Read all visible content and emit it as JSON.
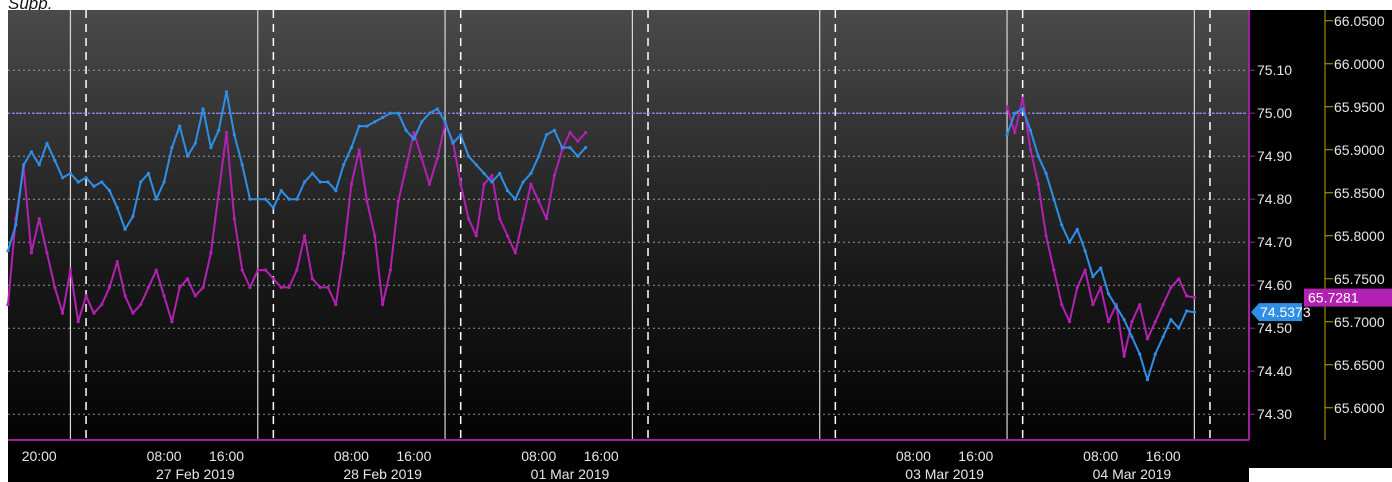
{
  "header_text": "Supp.",
  "chart_data": {
    "type": "line",
    "background": "#000000",
    "grid": "dotted",
    "x_tick_labels": [
      {
        "hour": 20,
        "label": "20:00"
      },
      {
        "hour": 36,
        "label": "08:00"
      },
      {
        "hour": 44,
        "label": "16:00"
      },
      {
        "hour": 60,
        "label": "08:00"
      },
      {
        "hour": 68,
        "label": "16:00"
      },
      {
        "hour": 84,
        "label": "08:00"
      },
      {
        "hour": 92,
        "label": "16:00"
      },
      {
        "hour": 132,
        "label": "08:00"
      },
      {
        "hour": 140,
        "label": "16:00"
      },
      {
        "hour": 156,
        "label": "08:00"
      },
      {
        "hour": 164,
        "label": "16:00"
      }
    ],
    "x_date_labels": [
      {
        "hour": 40,
        "label": "27 Feb 2019"
      },
      {
        "hour": 64,
        "label": "28 Feb 2019"
      },
      {
        "hour": 88,
        "label": "01 Mar 2019"
      },
      {
        "hour": 136,
        "label": "03 Mar 2019"
      },
      {
        "hour": 160,
        "label": "04 Mar 2019"
      }
    ],
    "x_range_hours": [
      16,
      175
    ],
    "day_boundaries_hours": [
      24,
      48,
      72,
      96,
      120,
      144,
      168
    ],
    "session_marks_hours": [
      26,
      50,
      74,
      98,
      122,
      146,
      170
    ],
    "y_left": {
      "ylim": [
        74.24,
        75.24
      ],
      "ticks": [
        "74.30",
        "74.40",
        "74.50",
        "74.60",
        "74.70",
        "74.80",
        "74.90",
        "75.00",
        "75.10"
      ]
    },
    "y_right": {
      "ylim": [
        65.5625,
        66.0625
      ],
      "ticks": [
        "65.6000",
        "65.6500",
        "65.7000",
        "65.7500",
        "65.8000",
        "65.8500",
        "65.9000",
        "65.9500",
        "66.0000",
        "66.0500"
      ]
    },
    "reference_line": {
      "axis": "left",
      "value": 75.0,
      "color": "#8080ff"
    },
    "series": [
      {
        "axis": "left",
        "color": "#2f8fe6",
        "last_value": "74.5373",
        "points": [
          [
            16,
            74.68
          ],
          [
            17,
            74.74
          ],
          [
            18,
            74.88
          ],
          [
            19,
            74.91
          ],
          [
            20,
            74.88
          ],
          [
            21,
            74.93
          ],
          [
            22,
            74.89
          ],
          [
            23,
            74.85
          ],
          [
            24,
            74.86
          ],
          [
            25,
            74.84
          ],
          [
            26,
            74.85
          ],
          [
            27,
            74.83
          ],
          [
            28,
            74.84
          ],
          [
            29,
            74.82
          ],
          [
            30,
            74.78
          ],
          [
            31,
            74.73
          ],
          [
            32,
            74.76
          ],
          [
            33,
            74.84
          ],
          [
            34,
            74.86
          ],
          [
            35,
            74.8
          ],
          [
            36,
            74.84
          ],
          [
            37,
            74.92
          ],
          [
            38,
            74.97
          ],
          [
            39,
            74.9
          ],
          [
            40,
            74.93
          ],
          [
            41,
            75.01
          ],
          [
            42,
            74.92
          ],
          [
            43,
            74.96
          ],
          [
            44,
            75.05
          ],
          [
            45,
            74.95
          ],
          [
            46,
            74.88
          ],
          [
            47,
            74.8
          ],
          [
            48,
            74.8
          ],
          [
            49,
            74.8
          ],
          [
            50,
            74.78
          ],
          [
            51,
            74.82
          ],
          [
            52,
            74.8
          ],
          [
            53,
            74.8
          ],
          [
            54,
            74.84
          ],
          [
            55,
            74.86
          ],
          [
            56,
            74.84
          ],
          [
            57,
            74.84
          ],
          [
            58,
            74.82
          ],
          [
            59,
            74.88
          ],
          [
            60,
            74.92
          ],
          [
            61,
            74.97
          ],
          [
            62,
            74.97
          ],
          [
            63,
            74.98
          ],
          [
            64,
            74.99
          ],
          [
            65,
            75.0
          ],
          [
            66,
            75.0
          ],
          [
            67,
            74.96
          ],
          [
            68,
            74.94
          ],
          [
            69,
            74.98
          ],
          [
            70,
            75.0
          ],
          [
            71,
            75.01
          ],
          [
            72,
            74.98
          ],
          [
            73,
            74.93
          ],
          [
            74,
            74.95
          ],
          [
            75,
            74.9
          ],
          [
            76,
            74.88
          ],
          [
            77,
            74.86
          ],
          [
            78,
            74.84
          ],
          [
            79,
            74.86
          ],
          [
            80,
            74.82
          ],
          [
            81,
            74.8
          ],
          [
            82,
            74.84
          ],
          [
            83,
            74.86
          ],
          [
            84,
            74.9
          ],
          [
            85,
            74.95
          ],
          [
            86,
            74.96
          ],
          [
            87,
            74.92
          ],
          [
            88,
            74.92
          ],
          [
            89,
            74.9
          ],
          [
            90,
            74.92
          ],
          [
            144,
            74.95
          ],
          [
            145,
            75.0
          ],
          [
            146,
            75.01
          ],
          [
            147,
            74.96
          ],
          [
            148,
            74.9
          ],
          [
            149,
            74.86
          ],
          [
            150,
            74.8
          ],
          [
            151,
            74.74
          ],
          [
            152,
            74.7
          ],
          [
            153,
            74.73
          ],
          [
            154,
            74.68
          ],
          [
            155,
            74.62
          ],
          [
            156,
            74.64
          ],
          [
            157,
            74.58
          ],
          [
            158,
            74.55
          ],
          [
            159,
            74.52
          ],
          [
            160,
            74.48
          ],
          [
            161,
            74.44
          ],
          [
            162,
            74.38
          ],
          [
            163,
            74.44
          ],
          [
            164,
            74.48
          ],
          [
            165,
            74.52
          ],
          [
            166,
            74.5
          ],
          [
            167,
            74.54
          ],
          [
            168,
            74.5373
          ]
        ]
      },
      {
        "axis": "right",
        "color": "#b321b3",
        "last_value": "65.7281",
        "points": [
          [
            16,
            65.72
          ],
          [
            17,
            65.82
          ],
          [
            18,
            65.88
          ],
          [
            19,
            65.78
          ],
          [
            20,
            65.82
          ],
          [
            21,
            65.78
          ],
          [
            22,
            65.74
          ],
          [
            23,
            65.71
          ],
          [
            24,
            65.76
          ],
          [
            25,
            65.7
          ],
          [
            26,
            65.73
          ],
          [
            27,
            65.71
          ],
          [
            28,
            65.72
          ],
          [
            29,
            65.74
          ],
          [
            30,
            65.77
          ],
          [
            31,
            65.73
          ],
          [
            32,
            65.71
          ],
          [
            33,
            65.72
          ],
          [
            34,
            65.74
          ],
          [
            35,
            65.76
          ],
          [
            36,
            65.73
          ],
          [
            37,
            65.7
          ],
          [
            38,
            65.74
          ],
          [
            39,
            65.75
          ],
          [
            40,
            65.73
          ],
          [
            41,
            65.74
          ],
          [
            42,
            65.78
          ],
          [
            43,
            65.85
          ],
          [
            44,
            65.92
          ],
          [
            45,
            65.82
          ],
          [
            46,
            65.76
          ],
          [
            47,
            65.74
          ],
          [
            48,
            65.76
          ],
          [
            49,
            65.76
          ],
          [
            50,
            65.75
          ],
          [
            51,
            65.74
          ],
          [
            52,
            65.74
          ],
          [
            53,
            65.76
          ],
          [
            54,
            65.8
          ],
          [
            55,
            65.75
          ],
          [
            56,
            65.74
          ],
          [
            57,
            65.74
          ],
          [
            58,
            65.72
          ],
          [
            59,
            65.78
          ],
          [
            60,
            65.86
          ],
          [
            61,
            65.9
          ],
          [
            62,
            65.84
          ],
          [
            63,
            65.8
          ],
          [
            64,
            65.72
          ],
          [
            65,
            65.76
          ],
          [
            66,
            65.84
          ],
          [
            67,
            65.88
          ],
          [
            68,
            65.92
          ],
          [
            69,
            65.89
          ],
          [
            70,
            65.86
          ],
          [
            71,
            65.89
          ],
          [
            72,
            65.93
          ],
          [
            73,
            65.91
          ],
          [
            74,
            65.86
          ],
          [
            75,
            65.82
          ],
          [
            76,
            65.8
          ],
          [
            77,
            65.86
          ],
          [
            78,
            65.87
          ],
          [
            79,
            65.82
          ],
          [
            80,
            65.8
          ],
          [
            81,
            65.78
          ],
          [
            82,
            65.82
          ],
          [
            83,
            65.86
          ],
          [
            84,
            65.84
          ],
          [
            85,
            65.82
          ],
          [
            86,
            65.87
          ],
          [
            87,
            65.9
          ],
          [
            88,
            65.92
          ],
          [
            89,
            65.91
          ],
          [
            90,
            65.92
          ],
          [
            144,
            65.95
          ],
          [
            145,
            65.92
          ],
          [
            146,
            65.96
          ],
          [
            147,
            65.9
          ],
          [
            148,
            65.86
          ],
          [
            149,
            65.8
          ],
          [
            150,
            65.76
          ],
          [
            151,
            65.72
          ],
          [
            152,
            65.7
          ],
          [
            153,
            65.74
          ],
          [
            154,
            65.76
          ],
          [
            155,
            65.72
          ],
          [
            156,
            65.74
          ],
          [
            157,
            65.7
          ],
          [
            158,
            65.72
          ],
          [
            159,
            65.66
          ],
          [
            160,
            65.7
          ],
          [
            161,
            65.72
          ],
          [
            162,
            65.68
          ],
          [
            163,
            65.7
          ],
          [
            164,
            65.72
          ],
          [
            165,
            65.74
          ],
          [
            166,
            65.75
          ],
          [
            167,
            65.73
          ],
          [
            168,
            65.7281
          ]
        ]
      }
    ]
  }
}
